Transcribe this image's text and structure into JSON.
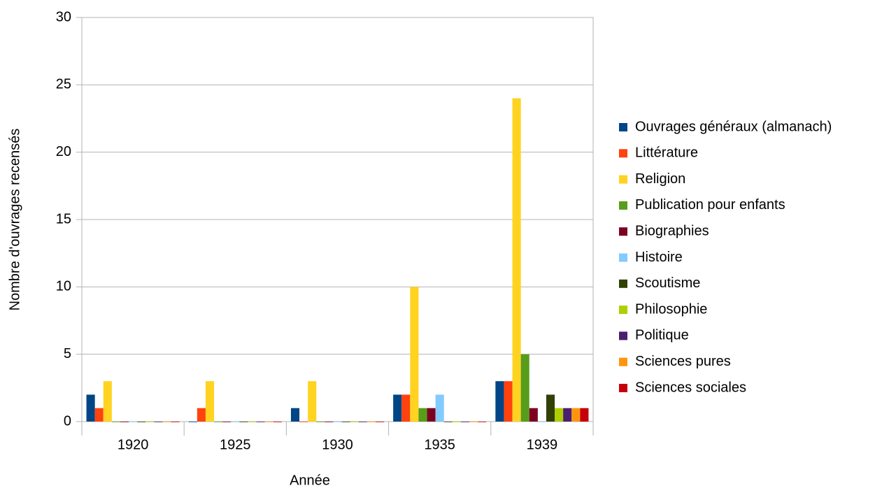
{
  "chart_data": {
    "type": "bar",
    "x_label": "Année",
    "y_label": "Nombre d'ouvrages recensés",
    "categories": [
      "1920",
      "1925",
      "1930",
      "1935",
      "1939"
    ],
    "series": [
      {
        "name": "Ouvrages généraux (almanach)",
        "color": "#004586",
        "values": [
          2,
          0,
          1,
          2,
          3
        ]
      },
      {
        "name": "Littérature",
        "color": "#ff420e",
        "values": [
          1,
          1,
          0,
          2,
          3
        ]
      },
      {
        "name": "Religion",
        "color": "#ffd320",
        "values": [
          3,
          3,
          3,
          10,
          24
        ]
      },
      {
        "name": "Publication pour enfants",
        "color": "#579d1c",
        "values": [
          0,
          0,
          0,
          1,
          5
        ]
      },
      {
        "name": "Biographies",
        "color": "#7e0021",
        "values": [
          0,
          0,
          0,
          1,
          1
        ]
      },
      {
        "name": "Histoire",
        "color": "#83caff",
        "values": [
          0,
          0,
          0,
          2,
          0
        ]
      },
      {
        "name": "Scoutisme",
        "color": "#314004",
        "values": [
          0,
          0,
          0,
          0,
          2
        ]
      },
      {
        "name": "Philosophie",
        "color": "#aecf00",
        "values": [
          0,
          0,
          0,
          0,
          1
        ]
      },
      {
        "name": "Politique",
        "color": "#4b1f6f",
        "values": [
          0,
          0,
          0,
          0,
          1
        ]
      },
      {
        "name": "Sciences pures",
        "color": "#ff950e",
        "values": [
          0,
          0,
          0,
          0,
          1
        ]
      },
      {
        "name": "Sciences sociales",
        "color": "#c5000b",
        "values": [
          0,
          0,
          0,
          0,
          1
        ]
      }
    ],
    "ylim": [
      0,
      30
    ],
    "yticks": [
      0,
      5,
      10,
      15,
      20,
      25,
      30
    ],
    "grid": true,
    "legend": "right"
  }
}
